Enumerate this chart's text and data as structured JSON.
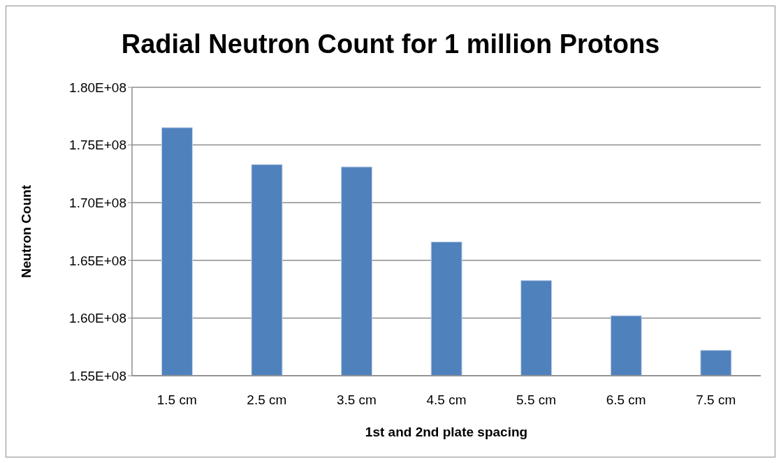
{
  "chart_data": {
    "type": "bar",
    "title": "Radial Neutron Count for 1 million Protons",
    "xlabel": "1st and 2nd plate spacing",
    "ylabel": "Neutron Count",
    "categories": [
      "1.5 cm",
      "2.5 cm",
      "3.5 cm",
      "4.5 cm",
      "5.5 cm",
      "6.5 cm",
      "7.5 cm"
    ],
    "values": [
      176500000,
      173300000,
      173100000,
      166600000,
      163250000,
      160200000,
      157200000
    ],
    "color": "#4f81bd",
    "ylim": [
      155000000,
      180000000
    ],
    "yticks": [
      {
        "value": 155000000,
        "label": "1.55E+08"
      },
      {
        "value": 160000000,
        "label": "1.60E+08"
      },
      {
        "value": 165000000,
        "label": "1.65E+08"
      },
      {
        "value": 170000000,
        "label": "1.70E+08"
      },
      {
        "value": 175000000,
        "label": "1.75E+08"
      },
      {
        "value": 180000000,
        "label": "1.80E+08"
      }
    ],
    "grid": "y",
    "legend": false
  }
}
